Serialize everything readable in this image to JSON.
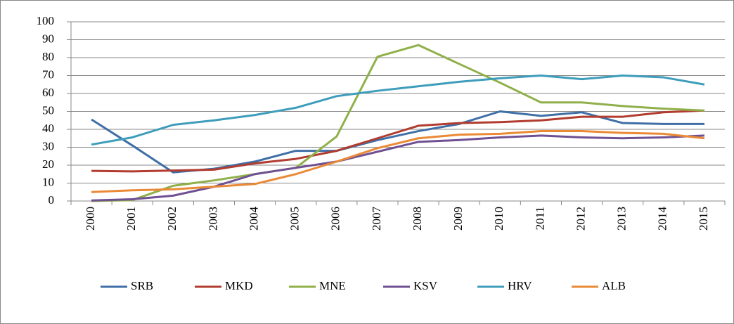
{
  "chart_data": {
    "type": "line",
    "categories": [
      "2000",
      "2001",
      "2002",
      "2003",
      "2004",
      "2005",
      "2006",
      "2007",
      "2008",
      "2009",
      "2010",
      "2011",
      "2012",
      "2013",
      "2014",
      "2015"
    ],
    "series": [
      {
        "name": "SRB",
        "color": "#3f6fa6",
        "values": [
          45.5,
          31,
          16,
          18,
          22,
          28,
          28,
          34,
          39,
          43,
          50,
          47.5,
          49.5,
          43.5,
          43,
          43
        ]
      },
      {
        "name": "MKD",
        "color": "#b13c2f",
        "values": [
          16.8,
          16.5,
          17,
          17.5,
          21,
          23.5,
          28,
          35,
          42,
          43.5,
          44,
          45,
          47,
          47,
          49.5,
          50.5
        ]
      },
      {
        "name": "MNE",
        "color": "#8fb04a",
        "values": [
          0,
          0.5,
          8.5,
          11.5,
          15,
          18.5,
          36,
          80.5,
          87,
          76.5,
          66,
          55,
          55,
          53,
          51.5,
          50.5
        ]
      },
      {
        "name": "KSV",
        "color": "#6f5092",
        "values": [
          0.3,
          1,
          3,
          8,
          15,
          18.5,
          22,
          27.5,
          33,
          34,
          35.5,
          36.5,
          35.5,
          35,
          35.5,
          36.5
        ]
      },
      {
        "name": "HRV",
        "color": "#3e9dbb",
        "values": [
          31.5,
          35.5,
          42.5,
          45,
          48,
          52,
          58.5,
          61.5,
          64,
          66.5,
          68.5,
          70,
          68,
          70,
          69,
          65
        ]
      },
      {
        "name": "ALB",
        "color": "#ea8a36",
        "values": [
          5,
          6,
          6.5,
          8,
          9.5,
          15,
          22,
          29.5,
          35,
          37,
          37.5,
          39,
          39,
          38,
          37.5,
          35
        ]
      }
    ],
    "ylim": [
      0,
      100
    ],
    "yticks": [
      0,
      10,
      20,
      30,
      40,
      50,
      60,
      70,
      80,
      90,
      100
    ],
    "grid": true,
    "legend": "bottom"
  }
}
